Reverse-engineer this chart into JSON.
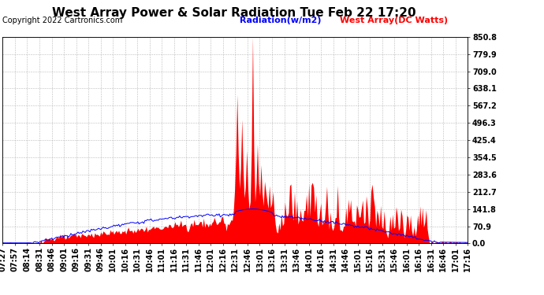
{
  "title": "West Array Power & Solar Radiation Tue Feb 22 17:20",
  "copyright": "Copyright 2022 Cartronics.com",
  "legend_radiation": "Radiation(w/m2)",
  "legend_west": "West Array(DC Watts)",
  "legend_radiation_color": "blue",
  "legend_west_color": "red",
  "yticks": [
    0.0,
    70.9,
    141.8,
    212.7,
    283.6,
    354.5,
    425.4,
    496.3,
    567.2,
    638.1,
    709.0,
    779.9,
    850.8
  ],
  "ymax": 850.8,
  "ymin": 0.0,
  "background_color": "#ffffff",
  "grid_color": "#aaaaaa",
  "fill_color_west": "red",
  "line_color_radiation": "blue",
  "xtick_labels": [
    "07:27",
    "07:57",
    "08:14",
    "08:31",
    "08:46",
    "09:01",
    "09:16",
    "09:31",
    "09:46",
    "10:01",
    "10:16",
    "10:31",
    "10:46",
    "11:01",
    "11:16",
    "11:31",
    "11:46",
    "12:01",
    "12:16",
    "12:31",
    "12:46",
    "13:01",
    "13:16",
    "13:31",
    "13:46",
    "14:01",
    "14:16",
    "14:31",
    "14:46",
    "15:01",
    "15:16",
    "15:31",
    "15:46",
    "16:01",
    "16:16",
    "16:31",
    "16:46",
    "17:01",
    "17:16"
  ],
  "title_fontsize": 11,
  "copyright_fontsize": 7,
  "tick_fontsize": 7,
  "legend_fontsize": 8
}
